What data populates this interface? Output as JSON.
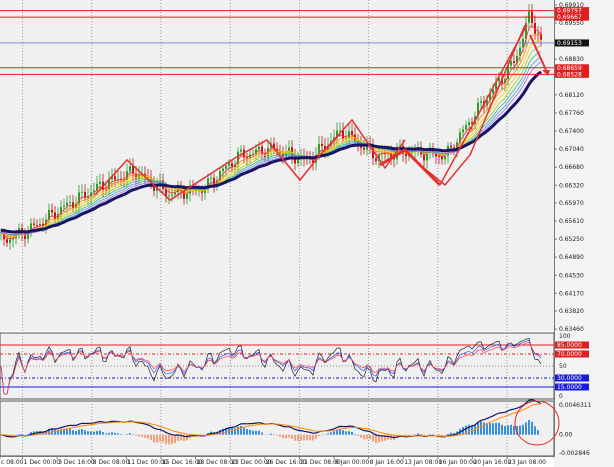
{
  "chart_data": {
    "type": "candlestick",
    "main": {
      "price_ticks": [
        "0.69910",
        "0.69550",
        "0.68830",
        "0.68120",
        "0.67760",
        "0.67400",
        "0.67040",
        "0.66680",
        "0.66320",
        "0.65970",
        "0.65610",
        "0.65250",
        "0.64890",
        "0.64530",
        "0.64170",
        "0.63820",
        "0.63460"
      ],
      "ylim": [
        0.6346,
        0.6995
      ],
      "horizontal_levels": [
        {
          "label": "0.69797",
          "value": 0.69797,
          "color": "#e02020"
        },
        {
          "label": "0.69667",
          "value": 0.69667,
          "color": "#e02020"
        },
        {
          "label": "0.68659",
          "value": 0.68659,
          "color": "#e02020"
        },
        {
          "label": "0.68528",
          "value": 0.68528,
          "color": "#e02020"
        }
      ],
      "current_price": {
        "label": "0.69153",
        "value": 0.69153,
        "line_color": "#6a7fd8"
      },
      "closes_at_time_labels": [
        0.6525,
        0.6545,
        0.659,
        0.663,
        0.666,
        0.6615,
        0.6625,
        0.669,
        0.6705,
        0.668,
        0.674,
        0.669,
        0.67,
        0.669,
        0.679,
        0.688
      ],
      "recent_high": 0.6972,
      "grid": true
    },
    "x_labels": [
      "c 08:00",
      "1 Dec 00:00",
      "3 Dec 16:00",
      "8 Dec 08:00",
      "11 Dec 00:00",
      "15 Dec 16:00",
      "18 Dec 08:00",
      "23 Dec 00:00",
      "26 Dec 16:00",
      "31 Dec 08:00",
      "6 Jan 00:00",
      "8 Jan 16:00",
      "13 Jan 08:00",
      "16 Jan 00:00",
      "20 Jan 16:00",
      "23 Jan 08:00"
    ],
    "rsi_pane": {
      "ticks": [
        "100",
        "50",
        "0"
      ],
      "levels": [
        {
          "label": "85.0000",
          "value": 85,
          "color": "#e02020"
        },
        {
          "label": "70.0000",
          "value": 70,
          "color": "#e02020"
        },
        {
          "label": "30.0000",
          "value": 30,
          "color": "#1a1adb"
        },
        {
          "label": "15.0000",
          "value": 15,
          "color": "#1a1adb"
        }
      ]
    },
    "macd_pane": {
      "ticks": [
        "0.0046311",
        "0.00",
        "-0.002846"
      ],
      "ylim": [
        -0.002846,
        0.0046311
      ]
    },
    "colors": {
      "background": "#f0f0f0",
      "candle_up": "#2a9d2a",
      "candle_down": "#c01818",
      "slow_ma": "#1b1464",
      "drawing": "#e53030",
      "hist_pos": "#3b8fe0",
      "hist_neg": "#f4a07a"
    }
  }
}
